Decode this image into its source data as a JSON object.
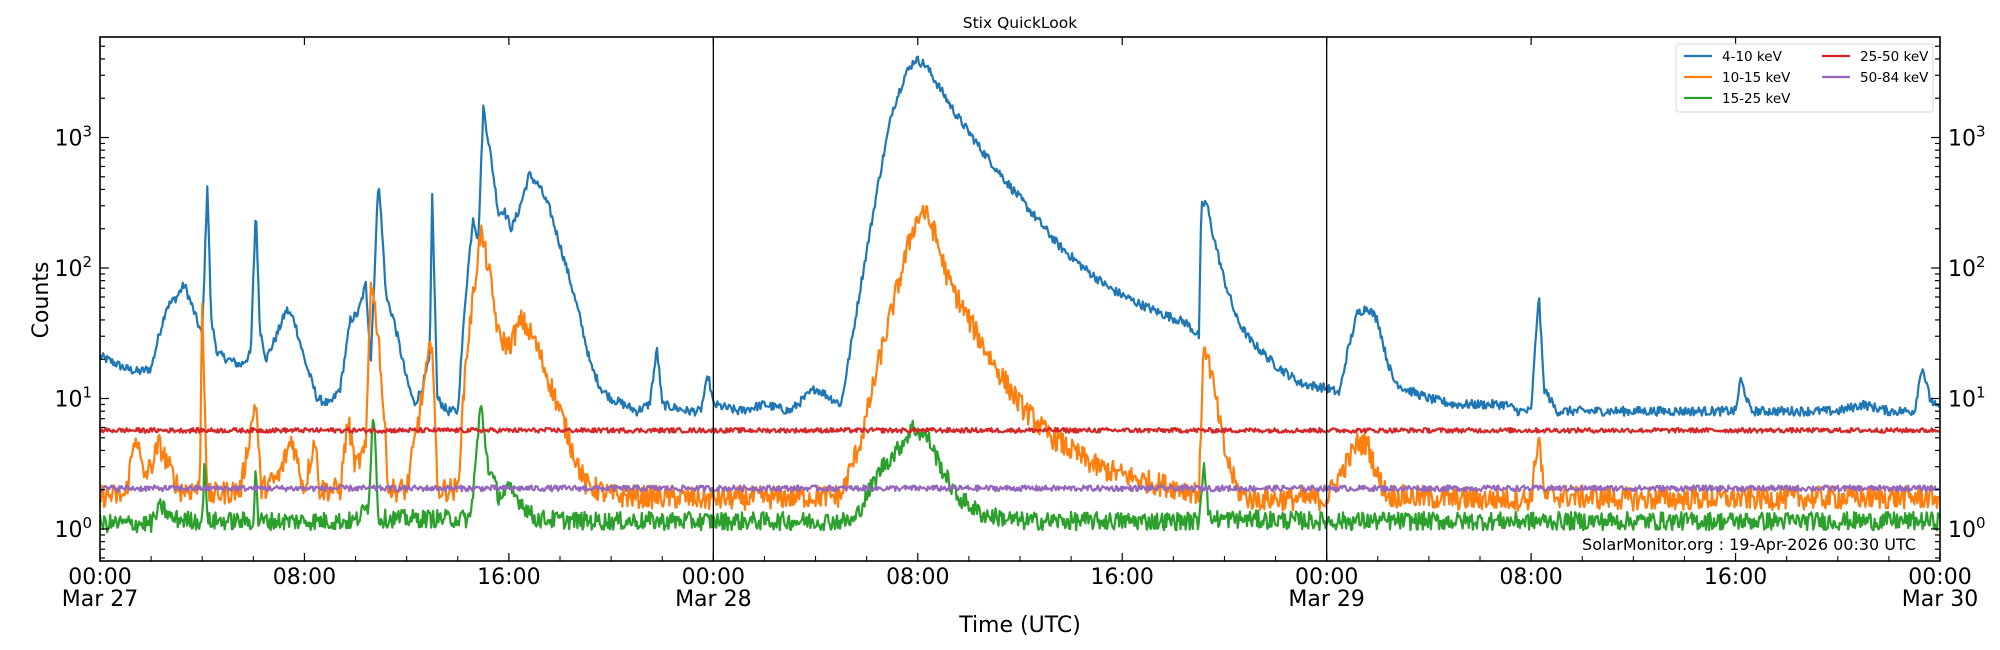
{
  "chart_data": {
    "type": "line",
    "title": "Stix QuickLook",
    "xlabel": "Time (UTC)",
    "ylabel": "Counts",
    "yscale": "log",
    "ylim": [
      0.55,
      6000
    ],
    "xlim_hours": [
      0,
      72
    ],
    "x_ticks": [
      {
        "hour": 0,
        "label": "00:00",
        "sublabel": "Mar 27"
      },
      {
        "hour": 8,
        "label": "08:00",
        "sublabel": ""
      },
      {
        "hour": 16,
        "label": "16:00",
        "sublabel": ""
      },
      {
        "hour": 24,
        "label": "00:00",
        "sublabel": "Mar 28"
      },
      {
        "hour": 32,
        "label": "08:00",
        "sublabel": ""
      },
      {
        "hour": 40,
        "label": "16:00",
        "sublabel": ""
      },
      {
        "hour": 48,
        "label": "00:00",
        "sublabel": "Mar 29"
      },
      {
        "hour": 56,
        "label": "08:00",
        "sublabel": ""
      },
      {
        "hour": 64,
        "label": "16:00",
        "sublabel": ""
      },
      {
        "hour": 72,
        "label": "00:00",
        "sublabel": "Mar 30"
      }
    ],
    "y_ticks": [
      {
        "exp": 0,
        "label": "10",
        "sup": "0"
      },
      {
        "exp": 1,
        "label": "10",
        "sup": "1"
      },
      {
        "exp": 2,
        "label": "10",
        "sup": "2"
      },
      {
        "exp": 3,
        "label": "10",
        "sup": "3"
      }
    ],
    "day_separators_hours": [
      24,
      48
    ],
    "legend": {
      "position": "upper right",
      "ncol": 2
    },
    "series": [
      {
        "name": "4-10 keV",
        "color": "#1f77b4",
        "baseline": 8,
        "points": [
          [
            0,
            21
          ],
          [
            0.5,
            19
          ],
          [
            1,
            17
          ],
          [
            1.5,
            16
          ],
          [
            2,
            17
          ],
          [
            2.3,
            30
          ],
          [
            2.6,
            50
          ],
          [
            3,
            60
          ],
          [
            3.3,
            75
          ],
          [
            3.7,
            45
          ],
          [
            4,
            30
          ],
          [
            4.2,
            440
          ],
          [
            4.35,
            40
          ],
          [
            4.6,
            22
          ],
          [
            5,
            20
          ],
          [
            5.5,
            18
          ],
          [
            5.9,
            22
          ],
          [
            6.1,
            300
          ],
          [
            6.25,
            35
          ],
          [
            6.5,
            20
          ],
          [
            6.9,
            30
          ],
          [
            7.3,
            48
          ],
          [
            7.6,
            40
          ],
          [
            8,
            20
          ],
          [
            8.5,
            10
          ],
          [
            9,
            9
          ],
          [
            9.4,
            12
          ],
          [
            9.8,
            40
          ],
          [
            10.1,
            45
          ],
          [
            10.4,
            75
          ],
          [
            10.6,
            20
          ],
          [
            10.9,
            500
          ],
          [
            11.2,
            60
          ],
          [
            11.5,
            40
          ],
          [
            12,
            14
          ],
          [
            12.3,
            9
          ],
          [
            12.6,
            12
          ],
          [
            12.9,
            20
          ],
          [
            13,
            360
          ],
          [
            13.2,
            10
          ],
          [
            13.6,
            8
          ],
          [
            14,
            8
          ],
          [
            14.3,
            60
          ],
          [
            14.6,
            250
          ],
          [
            14.8,
            160
          ],
          [
            15,
            1700
          ],
          [
            15.3,
            700
          ],
          [
            15.6,
            260
          ],
          [
            15.8,
            280
          ],
          [
            16.1,
            200
          ],
          [
            16.4,
            280
          ],
          [
            16.8,
            520
          ],
          [
            17.2,
            420
          ],
          [
            17.6,
            280
          ],
          [
            18,
            150
          ],
          [
            18.4,
            80
          ],
          [
            18.8,
            40
          ],
          [
            19.2,
            18
          ],
          [
            19.6,
            12
          ],
          [
            20,
            10
          ],
          [
            20.5,
            9
          ],
          [
            21,
            8
          ],
          [
            21.5,
            9
          ],
          [
            21.8,
            24
          ],
          [
            22,
            9
          ],
          [
            23,
            8
          ],
          [
            23.5,
            8
          ],
          [
            23.8,
            15
          ],
          [
            24,
            9
          ],
          [
            25,
            8
          ],
          [
            26,
            9
          ],
          [
            27,
            8
          ],
          [
            28,
            12
          ],
          [
            29,
            9
          ],
          [
            29.3,
            20
          ],
          [
            29.8,
            80
          ],
          [
            30.5,
            500
          ],
          [
            31,
            1600
          ],
          [
            31.5,
            3000
          ],
          [
            31.9,
            4000
          ],
          [
            32.3,
            3600
          ],
          [
            32.8,
            2500
          ],
          [
            33.5,
            1500
          ],
          [
            34.5,
            800
          ],
          [
            35.5,
            450
          ],
          [
            36.5,
            260
          ],
          [
            37.5,
            150
          ],
          [
            38.5,
            100
          ],
          [
            39.5,
            70
          ],
          [
            40.5,
            55
          ],
          [
            41.5,
            45
          ],
          [
            42.5,
            38
          ],
          [
            43,
            30
          ],
          [
            43.1,
            300
          ],
          [
            43.3,
            320
          ],
          [
            43.5,
            200
          ],
          [
            44,
            80
          ],
          [
            44.5,
            40
          ],
          [
            45,
            28
          ],
          [
            46,
            18
          ],
          [
            47,
            13
          ],
          [
            48,
            12
          ],
          [
            48.5,
            11
          ],
          [
            48.8,
            22
          ],
          [
            49.2,
            45
          ],
          [
            49.6,
            50
          ],
          [
            50,
            40
          ],
          [
            50.3,
            22
          ],
          [
            50.6,
            14
          ],
          [
            51,
            12
          ],
          [
            52,
            10
          ],
          [
            53,
            9
          ],
          [
            54,
            9
          ],
          [
            55,
            9
          ],
          [
            55.5,
            8
          ],
          [
            56,
            8
          ],
          [
            56.3,
            65
          ],
          [
            56.5,
            12
          ],
          [
            57,
            8
          ],
          [
            58,
            8
          ],
          [
            59,
            8
          ],
          [
            60,
            8
          ],
          [
            61,
            8
          ],
          [
            62,
            8
          ],
          [
            63,
            8
          ],
          [
            64,
            8
          ],
          [
            64.2,
            14
          ],
          [
            64.6,
            8
          ],
          [
            66,
            8
          ],
          [
            67,
            8
          ],
          [
            68,
            8
          ],
          [
            69,
            9
          ],
          [
            70,
            8
          ],
          [
            70.5,
            8
          ],
          [
            71,
            8
          ],
          [
            71.3,
            18
          ],
          [
            71.6,
            10
          ],
          [
            72,
            8
          ]
        ],
        "labels": "Mar27 00:00 to Mar30 00:00"
      },
      {
        "name": "10-15 keV",
        "color": "#ff7f0e",
        "baseline": 1.75,
        "points": [
          [
            0,
            1.8
          ],
          [
            1,
            1.8
          ],
          [
            1.4,
            5.5
          ],
          [
            1.7,
            2.5
          ],
          [
            2,
            3.0
          ],
          [
            2.3,
            4.5
          ],
          [
            2.7,
            3
          ],
          [
            3.1,
            2
          ],
          [
            3.9,
            2
          ],
          [
            4.0,
            55
          ],
          [
            4.2,
            1.8
          ],
          [
            5.5,
            2
          ],
          [
            6.1,
            10
          ],
          [
            6.3,
            2
          ],
          [
            7,
            2.5
          ],
          [
            7.5,
            5
          ],
          [
            8,
            2
          ],
          [
            8.4,
            5
          ],
          [
            8.6,
            2
          ],
          [
            9.4,
            2
          ],
          [
            9.7,
            7
          ],
          [
            10,
            3
          ],
          [
            10.4,
            4
          ],
          [
            10.6,
            85
          ],
          [
            10.9,
            30
          ],
          [
            11.3,
            2
          ],
          [
            12,
            2
          ],
          [
            13,
            30
          ],
          [
            13.2,
            2
          ],
          [
            14,
            2
          ],
          [
            14.3,
            18
          ],
          [
            14.6,
            60
          ],
          [
            14.9,
            190
          ],
          [
            15.2,
            100
          ],
          [
            15.6,
            30
          ],
          [
            16,
            25
          ],
          [
            16.5,
            40
          ],
          [
            17,
            28
          ],
          [
            17.5,
            15
          ],
          [
            18,
            8
          ],
          [
            18.5,
            4
          ],
          [
            19,
            2.2
          ],
          [
            20,
            1.8
          ],
          [
            24,
            1.7
          ],
          [
            29,
            1.8
          ],
          [
            29.8,
            5
          ],
          [
            30.5,
            20
          ],
          [
            31.2,
            70
          ],
          [
            31.8,
            200
          ],
          [
            32.2,
            280
          ],
          [
            32.6,
            200
          ],
          [
            33.2,
            80
          ],
          [
            34,
            40
          ],
          [
            35,
            18
          ],
          [
            36,
            9
          ],
          [
            37,
            5.5
          ],
          [
            38,
            4
          ],
          [
            39,
            3
          ],
          [
            40,
            2.6
          ],
          [
            41,
            2.3
          ],
          [
            42,
            2.1
          ],
          [
            43,
            1.9
          ],
          [
            43.2,
            28
          ],
          [
            43.5,
            15
          ],
          [
            44,
            4
          ],
          [
            44.5,
            2
          ],
          [
            45,
            1.7
          ],
          [
            48,
            1.7
          ],
          [
            49.2,
            4.5
          ],
          [
            49.6,
            4.5
          ],
          [
            50,
            2.5
          ],
          [
            50.4,
            1.8
          ],
          [
            53,
            1.7
          ],
          [
            56,
            1.7
          ],
          [
            56.3,
            5.5
          ],
          [
            56.5,
            1.8
          ],
          [
            60,
            1.7
          ],
          [
            72,
            1.75
          ]
        ],
        "labels": "Mar27 00:00 to Mar30 00:00"
      },
      {
        "name": "15-25 keV",
        "color": "#2ca02c",
        "baseline": 1.15,
        "points": [
          [
            0,
            1.1
          ],
          [
            2,
            1.1
          ],
          [
            2.4,
            1.5
          ],
          [
            2.8,
            1.2
          ],
          [
            4,
            1.15
          ],
          [
            4.1,
            4
          ],
          [
            4.2,
            1.15
          ],
          [
            6,
            1.15
          ],
          [
            6.1,
            3
          ],
          [
            6.2,
            1.15
          ],
          [
            10,
            1.15
          ],
          [
            10.5,
            1.5
          ],
          [
            10.7,
            9
          ],
          [
            10.9,
            1.2
          ],
          [
            14.5,
            1.2
          ],
          [
            14.9,
            9
          ],
          [
            15.2,
            3
          ],
          [
            15.6,
            1.8
          ],
          [
            16,
            2
          ],
          [
            16.5,
            1.6
          ],
          [
            17,
            1.2
          ],
          [
            19,
            1.15
          ],
          [
            24,
            1.15
          ],
          [
            29.5,
            1.15
          ],
          [
            30,
            1.8
          ],
          [
            30.6,
            3
          ],
          [
            31.2,
            4
          ],
          [
            31.8,
            6
          ],
          [
            32.4,
            5
          ],
          [
            32.9,
            3
          ],
          [
            33.5,
            1.8
          ],
          [
            34.5,
            1.3
          ],
          [
            36,
            1.15
          ],
          [
            43,
            1.15
          ],
          [
            43.2,
            3.5
          ],
          [
            43.4,
            1.2
          ],
          [
            48,
            1.15
          ],
          [
            72,
            1.15
          ]
        ],
        "labels": "Mar27 00:00 to Mar30 00:00"
      },
      {
        "name": "25-50 keV",
        "color": "#d62728",
        "baseline": 5.7,
        "points": [
          [
            0,
            5.7
          ],
          [
            72,
            5.7
          ]
        ],
        "labels": "flat background ~5.7"
      },
      {
        "name": "50-84 keV",
        "color": "#9467bd",
        "baseline": 2.05,
        "points": [
          [
            0,
            2.05
          ],
          [
            72,
            2.05
          ]
        ],
        "labels": "flat background ~2.05"
      }
    ]
  },
  "footer": {
    "credit": "SolarMonitor.org : 19-Apr-2026 00:30 UTC"
  }
}
